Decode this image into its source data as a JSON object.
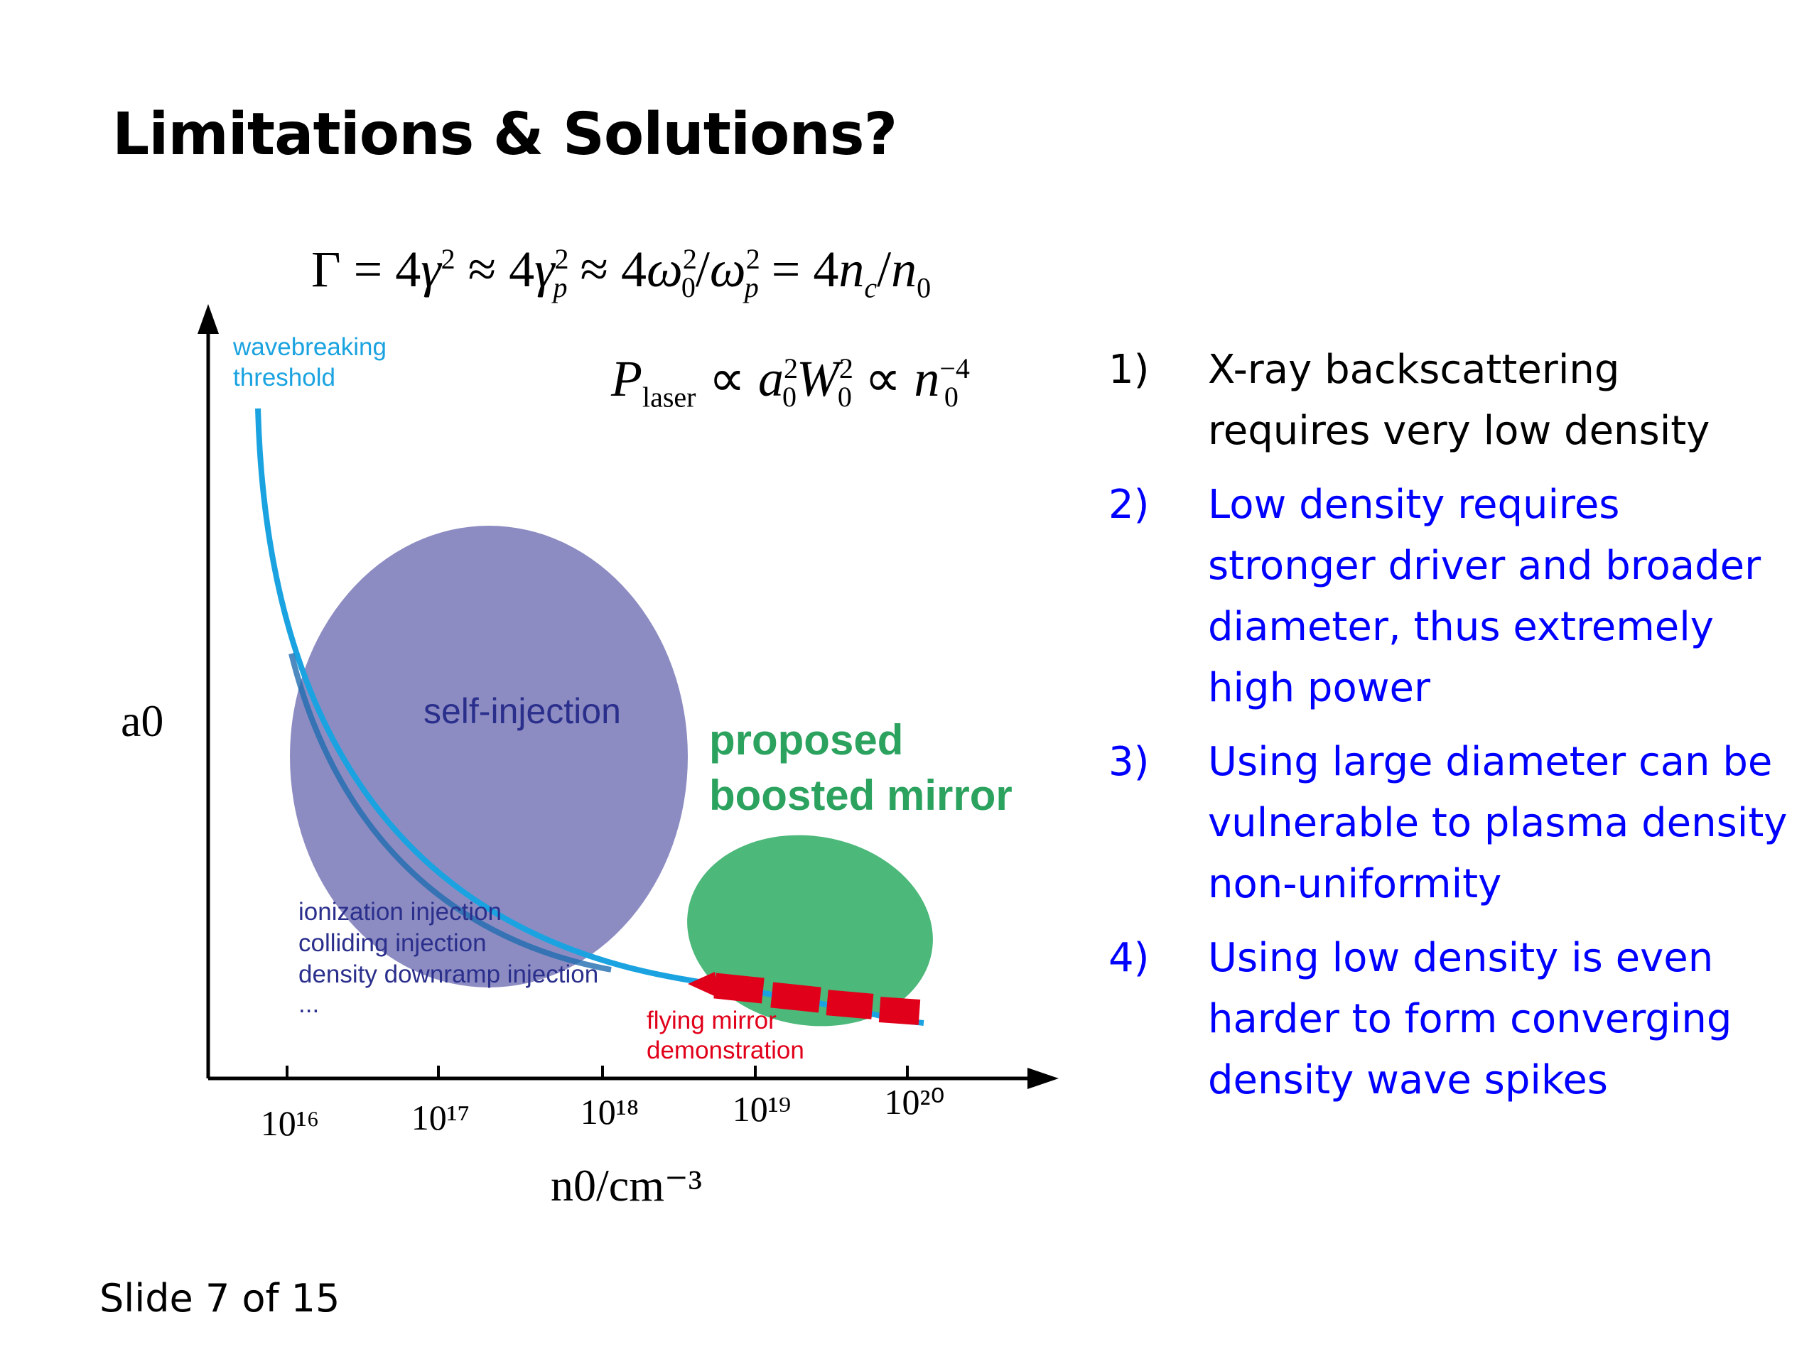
{
  "slide": {
    "title": "Limitations & Solutions?",
    "footer": "Slide 7 of 15"
  },
  "formulas": {
    "gamma": "Γ = 4γ² ≈ 4γp² ≈ 4ω0²/ωp² = 4nc/n0",
    "power": "Plaser ∝ a0²W0² ∝ n0⁻⁴"
  },
  "diagram": {
    "y_axis_label": "a0",
    "x_axis_label": "n0/cm⁻³",
    "x_ticks": [
      "10¹⁶",
      "10¹⁷",
      "10¹⁸",
      "10¹⁹",
      "10²⁰"
    ],
    "threshold_label": [
      "wavebreaking",
      "threshold"
    ],
    "self_injection_label": "self-injection",
    "injection_methods": [
      "ionization injection",
      "colliding injection",
      "density downramp injection",
      "..."
    ],
    "proposed_label": [
      "proposed",
      "boosted mirror"
    ],
    "flying_mirror_label": [
      "flying mirror",
      "demonstration"
    ],
    "colors": {
      "threshold": "#1aa3e0",
      "self_injection": "#8c8cc2",
      "proposed": "#4cb87a",
      "flying_mirror": "#e1001a",
      "navy_text": "#2b2f8c",
      "blue_text": "#0000ff"
    }
  },
  "list": [
    {
      "num": "1)",
      "text": "X-ray backscattering requires very low density",
      "color": "#000000"
    },
    {
      "num": "2)",
      "text": "Low density requires stronger driver and broader diameter, thus extremely high power",
      "color": "#0000ff"
    },
    {
      "num": "3)",
      "text": "Using large diameter can be vulnerable to plasma density non-uniformity",
      "color": "#0000ff"
    },
    {
      "num": "4)",
      "text": "Using low density is even harder to form converging density wave spikes",
      "color": "#0000ff"
    }
  ]
}
